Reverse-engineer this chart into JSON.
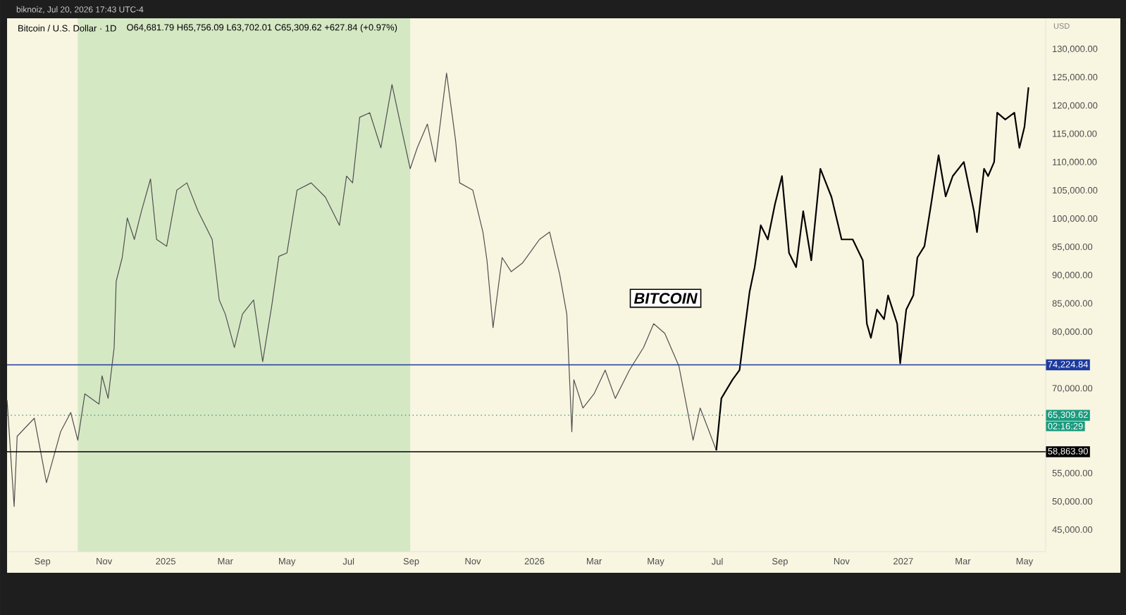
{
  "chart_data": {
    "type": "line",
    "title": "Bitcoin / U.S. Dollar · 1D",
    "subtitle": "O64,681.79 H65,756.09 L63,702.01 C65,309.62 +627.84 (+0.97%)",
    "ylabel": "USD",
    "annotations": [
      "biknoiz, Jul 20, 2026 17:43 UTC-4",
      "BITCOIN",
      "02:16:29"
    ],
    "xlim": [
      "2024-07-28",
      "2027-05-22"
    ],
    "xticks": [
      {
        "value": "2024-09-01",
        "label": "Sep"
      },
      {
        "value": "2024-11-01",
        "label": "Nov"
      },
      {
        "value": "2025-01-01",
        "label": "2025"
      },
      {
        "value": "2025-03-01",
        "label": "Mar"
      },
      {
        "value": "2025-05-01",
        "label": "May"
      },
      {
        "value": "2025-07-01",
        "label": "Jul"
      },
      {
        "value": "2025-09-01",
        "label": "Sep"
      },
      {
        "value": "2025-11-01",
        "label": "Nov"
      },
      {
        "value": "2026-01-01",
        "label": "2026"
      },
      {
        "value": "2026-03-01",
        "label": "Mar"
      },
      {
        "value": "2026-05-01",
        "label": "May"
      },
      {
        "value": "2026-07-01",
        "label": "Jul"
      },
      {
        "value": "2026-09-01",
        "label": "Sep"
      },
      {
        "value": "2026-11-01",
        "label": "Nov"
      },
      {
        "value": "2027-01-01",
        "label": "2027"
      },
      {
        "value": "2027-03-01",
        "label": "Mar"
      },
      {
        "value": "2027-05-01",
        "label": "May"
      }
    ],
    "ylim": [
      41200,
      135500
    ],
    "yticks": [
      {
        "value": 45000,
        "label": "45,000.00"
      },
      {
        "value": 50000,
        "label": "50,000.00"
      },
      {
        "value": 55000,
        "label": "55,000.00"
      },
      {
        "value": 70000,
        "label": "70,000.00"
      },
      {
        "value": 80000,
        "label": "80,000.00"
      },
      {
        "value": 85000,
        "label": "85,000.00"
      },
      {
        "value": 90000,
        "label": "90,000.00"
      },
      {
        "value": 95000,
        "label": "95,000.00"
      },
      {
        "value": 100000,
        "label": "100,000.00"
      },
      {
        "value": 105000,
        "label": "105,000.00"
      },
      {
        "value": 110000,
        "label": "110,000.00"
      },
      {
        "value": 115000,
        "label": "115,000.00"
      },
      {
        "value": 120000,
        "label": "120,000.00"
      },
      {
        "value": 125000,
        "label": "125,000.00"
      },
      {
        "value": 130000,
        "label": "130,000.00"
      }
    ],
    "bands": [
      {
        "axis": "x",
        "from": "2024-10-06",
        "to": "2025-08-31",
        "color": "#d5e8c4"
      }
    ],
    "ref_lines": [
      {
        "axis": "y",
        "value": 58863.9,
        "label": "58,863.90",
        "color": "#000000",
        "line_style": "solid"
      },
      {
        "axis": "y",
        "value": 74224.84,
        "label": "74,224.84",
        "color": "#1c3a9e",
        "line_style": "solid"
      },
      {
        "axis": "y",
        "value": 65309.62,
        "label": "65,309.62",
        "color": "#1a9a7e",
        "line_style": "dotted"
      }
    ],
    "marker": "none",
    "series": [
      {
        "color": "#505050",
        "x": [
          "2024-07-28",
          "2024-08-04",
          "2024-08-07",
          "2024-08-24",
          "2024-09-05",
          "2024-09-19",
          "2024-09-29",
          "2024-10-06",
          "2024-10-13",
          "2024-10-27",
          "2024-10-30",
          "2024-11-05",
          "2024-11-11",
          "2024-11-13",
          "2024-11-19",
          "2024-11-24",
          "2024-12-01",
          "2024-12-08",
          "2024-12-17",
          "2024-12-23",
          "2025-01-02",
          "2025-01-12",
          "2025-01-22",
          "2025-02-02",
          "2025-02-16",
          "2025-02-23",
          "2025-03-01",
          "2025-03-10",
          "2025-03-18",
          "2025-03-29",
          "2025-04-07",
          "2025-04-16",
          "2025-04-23",
          "2025-05-01",
          "2025-05-11",
          "2025-05-25",
          "2025-06-08",
          "2025-06-22",
          "2025-06-29",
          "2025-07-05",
          "2025-07-12",
          "2025-07-22",
          "2025-08-02",
          "2025-08-13",
          "2025-08-22",
          "2025-08-31",
          "2025-09-07",
          "2025-09-17",
          "2025-09-25",
          "2025-10-06",
          "2025-10-15",
          "2025-10-19",
          "2025-11-01",
          "2025-11-11",
          "2025-11-15",
          "2025-11-21",
          "2025-11-30",
          "2025-12-09",
          "2025-12-20",
          "2026-01-06",
          "2026-01-16",
          "2026-01-26",
          "2026-02-02",
          "2026-02-07",
          "2026-02-09",
          "2026-02-18",
          "2026-03-01",
          "2026-03-12",
          "2026-03-22",
          "2026-04-05",
          "2026-04-19",
          "2026-04-29",
          "2026-05-10",
          "2026-05-24",
          "2026-06-01",
          "2026-06-07",
          "2026-06-14",
          "2026-06-23",
          "2026-06-30"
        ],
        "values": [
          68000,
          49200,
          61600,
          64800,
          53400,
          62400,
          65800,
          60900,
          69100,
          67300,
          72300,
          68300,
          77300,
          89000,
          93200,
          100200,
          96400,
          101400,
          107100,
          96400,
          95200,
          105100,
          106400,
          101400,
          96400,
          85700,
          83200,
          77300,
          83200,
          85700,
          74800,
          84700,
          93400,
          94000,
          105100,
          106400,
          103900,
          98900,
          107600,
          106400,
          118000,
          118800,
          112600,
          123800,
          116300,
          108900,
          112600,
          116800,
          110100,
          125800,
          113800,
          106400,
          105100,
          97700,
          92700,
          80800,
          93200,
          90700,
          92200,
          96400,
          97700,
          90200,
          83200,
          62400,
          71600,
          66600,
          69100,
          73300,
          68300,
          73300,
          77300,
          81500,
          79800,
          74000,
          66600,
          60900,
          66600,
          62400,
          59100
        ]
      },
      {
        "color": "#000000",
        "x": [
          "2026-06-30",
          "2026-07-05",
          "2026-07-16",
          "2026-07-23",
          "2026-07-27",
          "2026-08-02",
          "2026-08-07",
          "2026-08-13",
          "2026-08-20",
          "2026-08-27",
          "2026-09-03",
          "2026-09-10",
          "2026-09-17",
          "2026-09-24",
          "2026-10-02",
          "2026-10-11",
          "2026-10-22",
          "2026-11-01",
          "2026-11-12",
          "2026-11-22",
          "2026-11-26",
          "2026-11-30",
          "2026-12-06",
          "2026-12-13",
          "2026-12-17",
          "2026-12-26",
          "2026-12-29",
          "2027-01-04",
          "2027-01-11",
          "2027-01-15",
          "2027-01-22",
          "2027-01-29",
          "2027-02-05",
          "2027-02-12",
          "2027-02-19",
          "2027-03-02",
          "2027-03-12",
          "2027-03-15",
          "2027-03-22",
          "2027-03-26",
          "2027-04-01",
          "2027-04-04",
          "2027-04-12",
          "2027-04-21",
          "2027-04-26",
          "2027-05-01",
          "2027-05-05"
        ],
        "values": [
          59100,
          68300,
          71600,
          73300,
          79000,
          87200,
          91500,
          98900,
          96400,
          102600,
          107600,
          94000,
          91500,
          101400,
          92700,
          108900,
          103900,
          96400,
          96400,
          92700,
          81500,
          79000,
          84000,
          82300,
          86500,
          81500,
          74500,
          84000,
          86500,
          93200,
          95200,
          103100,
          111300,
          104000,
          107600,
          110100,
          101400,
          97700,
          108900,
          107600,
          110100,
          118800,
          117600,
          118800,
          112600,
          116300,
          123300
        ]
      }
    ]
  }
}
